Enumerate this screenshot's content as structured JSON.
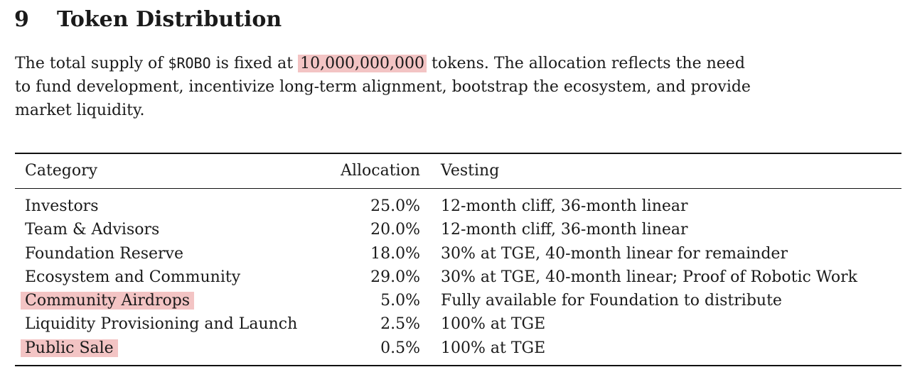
{
  "section": {
    "number": "9",
    "title": "Token Distribution"
  },
  "intro": {
    "line1_a": "The total supply of ",
    "ticker": "$ROBO",
    "line1_b": " is fixed at ",
    "supply": "10,000,000,000",
    "line1_c": " tokens.  The allocation reflects the need",
    "line2": "to fund development, incentivize long-term alignment, bootstrap the ecosystem, and provide",
    "line3": "market liquidity."
  },
  "table": {
    "headers": {
      "category": "Category",
      "allocation": "Allocation",
      "vesting": "Vesting"
    },
    "rows": [
      {
        "category": "Investors",
        "allocation": "25.0%",
        "vesting": "12-month cliff, 36-month linear",
        "highlighted": false
      },
      {
        "category": "Team & Advisors",
        "allocation": "20.0%",
        "vesting": "12-month cliff, 36-month linear",
        "highlighted": false
      },
      {
        "category": "Foundation Reserve",
        "allocation": "18.0%",
        "vesting": "30% at TGE, 40-month linear for remainder",
        "highlighted": false
      },
      {
        "category": "Ecosystem and Community",
        "allocation": "29.0%",
        "vesting": "30% at TGE, 40-month linear; Proof of Robotic Work",
        "highlighted": false
      },
      {
        "category": "Community Airdrops",
        "allocation": "5.0%",
        "vesting": "Fully available for Foundation to distribute",
        "highlighted": true
      },
      {
        "category": "Liquidity Provisioning and Launch",
        "allocation": "2.5%",
        "vesting": "100% at TGE",
        "highlighted": false
      },
      {
        "category": "Public Sale",
        "allocation": "0.5%",
        "vesting": "100% at TGE",
        "highlighted": true
      }
    ]
  },
  "colors": {
    "highlight": "#f3c4c4",
    "text": "#1a1a1a"
  }
}
